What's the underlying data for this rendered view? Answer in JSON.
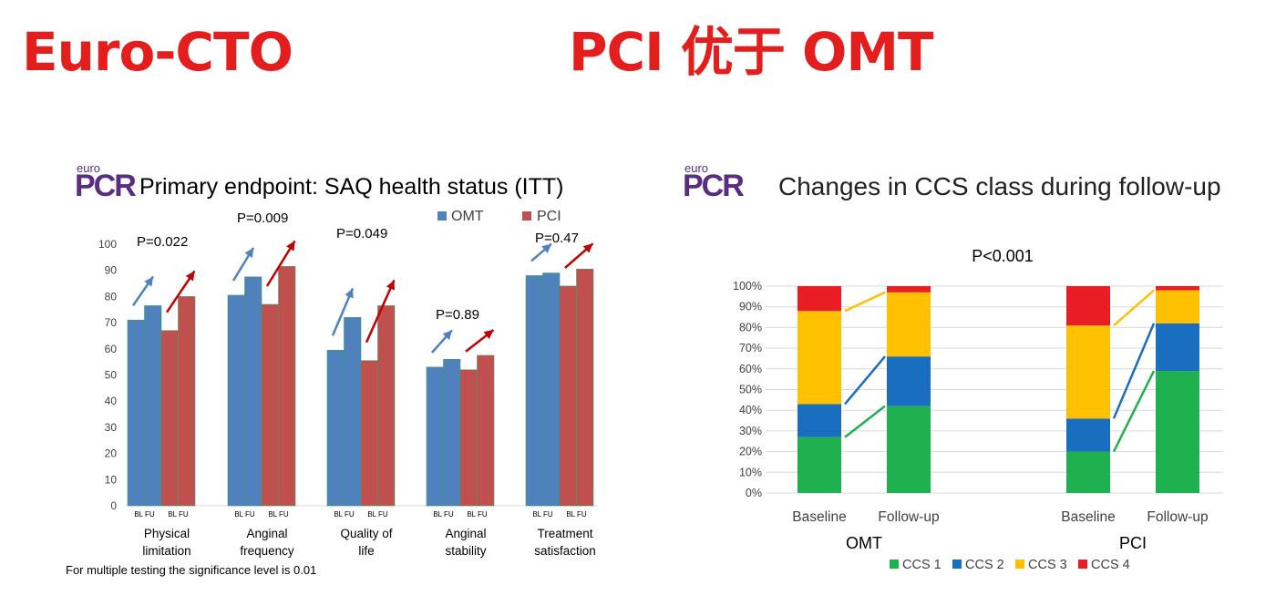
{
  "header": {
    "left_title": "Euro-CTO",
    "right_title": "PCI 优于 OMT"
  },
  "logo": {
    "top": "euro",
    "main": "PCR"
  },
  "colors": {
    "omt": "#4f81bd",
    "pci": "#c0504d",
    "ccs1": "#1fb14f",
    "ccs2": "#1a6ec0",
    "ccs3": "#ffc000",
    "ccs4": "#ea1c24",
    "title_red": "#e41d1d",
    "pcr_purple": "#5a2d82"
  },
  "chart_data": [
    {
      "type": "bar",
      "title": "Primary endpoint: SAQ health status (ITT)",
      "categories": [
        "Physical limitation",
        "Anginal frequency",
        "Quality of life",
        "Anginal stability",
        "Treatment satisfaction"
      ],
      "category_lines": [
        [
          "Physical",
          "limitation"
        ],
        [
          "Anginal",
          "frequency"
        ],
        [
          "Quality of",
          "life"
        ],
        [
          "Anginal",
          "stability"
        ],
        [
          "Treatment",
          "satisfaction"
        ]
      ],
      "bar_sublabels": [
        "BL FU",
        "BL FU"
      ],
      "series": [
        {
          "name": "OMT",
          "values_bl": [
            71,
            80.5,
            59.5,
            53,
            88
          ],
          "values_fu": [
            76.5,
            87.5,
            72,
            56,
            89
          ]
        },
        {
          "name": "PCI",
          "values_bl": [
            67,
            77,
            55.5,
            52,
            84
          ],
          "values_fu": [
            80,
            91.5,
            76.5,
            57.5,
            90.5
          ]
        }
      ],
      "p_values": [
        "P=0.022",
        "P=0.009",
        "P=0.049",
        "P=0.89",
        "P=0.47"
      ],
      "ylim": [
        0,
        100
      ],
      "yticks": [
        0,
        10,
        20,
        30,
        40,
        50,
        60,
        70,
        80,
        90,
        100
      ],
      "legend": "top-right",
      "grid": false,
      "footnote": "For multiple testing the significance level is 0.01"
    },
    {
      "type": "bar",
      "stacked": true,
      "title": "Changes in CCS class during follow-up",
      "annotation": "P<0.001",
      "groups": [
        "OMT",
        "PCI"
      ],
      "categories": [
        "Baseline",
        "Follow-up",
        "Baseline",
        "Follow-up"
      ],
      "series": [
        {
          "name": "CCS 1",
          "values": [
            27,
            42,
            20,
            59
          ]
        },
        {
          "name": "CCS 2",
          "values": [
            16,
            24,
            16,
            23
          ]
        },
        {
          "name": "CCS 3",
          "values": [
            45,
            31,
            45,
            16
          ]
        },
        {
          "name": "CCS 4",
          "values": [
            12,
            3,
            19,
            2
          ]
        }
      ],
      "ylim": [
        0,
        100
      ],
      "yticks": [
        "0%",
        "10%",
        "20%",
        "30%",
        "40%",
        "50%",
        "60%",
        "70%",
        "80%",
        "90%",
        "100%"
      ],
      "legend": "bottom",
      "grid": true
    }
  ]
}
